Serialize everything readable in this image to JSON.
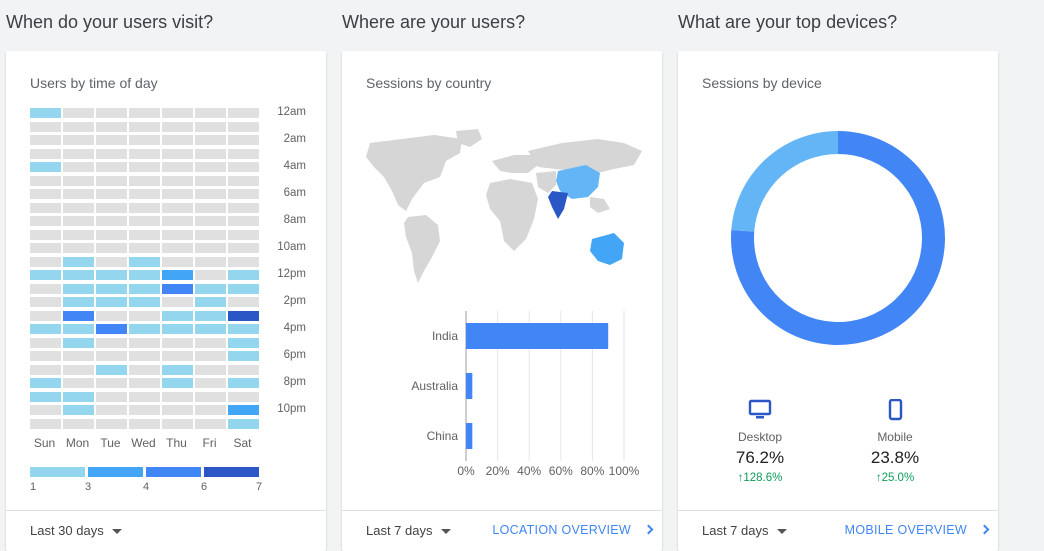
{
  "sections": {
    "time": {
      "heading": "When do your users visit?",
      "card_title": "Users by time of day",
      "range": "Last 30 days"
    },
    "geo": {
      "heading": "Where are your users?",
      "card_title": "Sessions by country",
      "range": "Last 7 days",
      "link": "LOCATION OVERVIEW"
    },
    "device": {
      "heading": "What are your top devices?",
      "card_title": "Sessions by device",
      "range": "Last 7 days",
      "link": "MOBILE OVERVIEW"
    }
  },
  "colors": {
    "empty": "#e0e0e0",
    "l1": "#94d6ee",
    "l2": "#42a5f5",
    "l3": "#4285f4",
    "l4": "#2a56c6",
    "bar": "#4285f4",
    "donut_desktop": "#4285f4",
    "donut_mobile": "#64b5f6",
    "map_land": "#d6d6d6",
    "map_china": "#64b5f6",
    "map_australia": "#42a5f5",
    "map_india": "#2a56c6",
    "positive": "#0f9d58"
  },
  "heatmap": {
    "days": [
      "Sun",
      "Mon",
      "Tue",
      "Wed",
      "Thu",
      "Fri",
      "Sat"
    ],
    "hour_labels": [
      "12am",
      "2am",
      "4am",
      "6am",
      "8am",
      "10am",
      "12pm",
      "2pm",
      "4pm",
      "6pm",
      "8pm",
      "10pm"
    ],
    "legend": [
      "1",
      "3",
      "4",
      "6",
      "7"
    ],
    "grid": [
      [
        1,
        0,
        0,
        0,
        0,
        0,
        0
      ],
      [
        0,
        0,
        0,
        0,
        0,
        0,
        0
      ],
      [
        0,
        0,
        0,
        0,
        0,
        0,
        0
      ],
      [
        0,
        0,
        0,
        0,
        0,
        0,
        0
      ],
      [
        1,
        0,
        0,
        0,
        0,
        0,
        0
      ],
      [
        0,
        0,
        0,
        0,
        0,
        0,
        0
      ],
      [
        0,
        0,
        0,
        0,
        0,
        0,
        0
      ],
      [
        0,
        0,
        0,
        0,
        0,
        0,
        0
      ],
      [
        0,
        0,
        0,
        0,
        0,
        0,
        0
      ],
      [
        0,
        0,
        0,
        0,
        0,
        0,
        0
      ],
      [
        0,
        0,
        0,
        0,
        0,
        0,
        0
      ],
      [
        0,
        1,
        0,
        1,
        0,
        0,
        0
      ],
      [
        1,
        1,
        1,
        1,
        2,
        0,
        1
      ],
      [
        0,
        1,
        1,
        1,
        3,
        1,
        1
      ],
      [
        0,
        1,
        1,
        1,
        0,
        1,
        0
      ],
      [
        0,
        3,
        0,
        0,
        1,
        1,
        4
      ],
      [
        1,
        1,
        3,
        1,
        1,
        1,
        1
      ],
      [
        0,
        1,
        0,
        0,
        0,
        0,
        1
      ],
      [
        0,
        0,
        0,
        0,
        0,
        0,
        1
      ],
      [
        0,
        0,
        1,
        0,
        1,
        0,
        0
      ],
      [
        1,
        0,
        0,
        0,
        1,
        0,
        1
      ],
      [
        1,
        1,
        0,
        0,
        0,
        0,
        0
      ],
      [
        0,
        1,
        0,
        0,
        0,
        0,
        2
      ],
      [
        0,
        0,
        0,
        0,
        0,
        0,
        1
      ]
    ]
  },
  "chart_data": {
    "type": "bar",
    "orientation": "horizontal",
    "categories": [
      "India",
      "Australia",
      "China"
    ],
    "values": [
      90,
      4,
      4
    ],
    "xlim": [
      0,
      100
    ],
    "xticks": [
      "0%",
      "20%",
      "40%",
      "60%",
      "80%",
      "100%"
    ]
  },
  "devices": {
    "items": [
      {
        "name": "Desktop",
        "icon": "desktop-icon",
        "value": "76.2%",
        "fraction": 0.762,
        "change": "128.6%"
      },
      {
        "name": "Mobile",
        "icon": "mobile-icon",
        "value": "23.8%",
        "fraction": 0.238,
        "change": "25.0%"
      }
    ]
  }
}
